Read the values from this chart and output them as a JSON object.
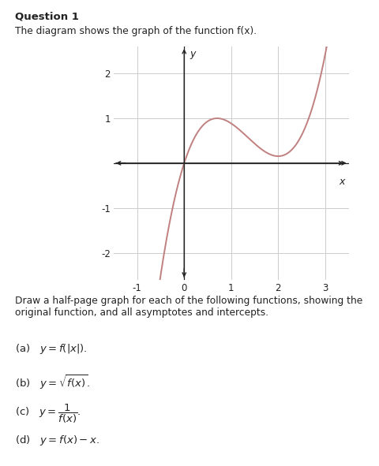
{
  "title": "Question 1",
  "subtitle": "The diagram shows the graph of the function f(x).",
  "instructions": "Draw a half-page graph for each of the following functions, showing the original function, and all asymptotes and intercepts.",
  "curve_color": "#c08080",
  "background_color": "#ffffff",
  "grid_color": "#cccccc",
  "axis_color": "#222222",
  "text_color": "#222222",
  "xlim": [
    -1.5,
    3.5
  ],
  "ylim": [
    -2.6,
    2.6
  ],
  "xticks": [
    -1,
    0,
    1,
    2,
    3
  ],
  "yticks": [
    -2,
    -1,
    1,
    2
  ],
  "xlabel": "x",
  "ylabel": "y",
  "curve_lw": 1.4
}
